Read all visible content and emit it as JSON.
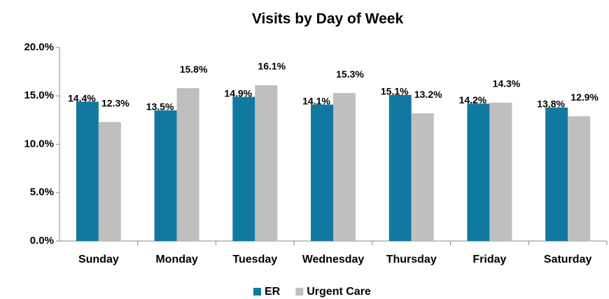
{
  "chart_data": {
    "type": "bar",
    "title": "Visits by Day of Week",
    "categories": [
      "Sunday",
      "Monday",
      "Tuesday",
      "Wednesday",
      "Thursday",
      "Friday",
      "Saturday"
    ],
    "series": [
      {
        "name": "ER",
        "color": "#11799f",
        "values": [
          14.4,
          13.5,
          14.9,
          14.1,
          15.1,
          14.2,
          13.8
        ],
        "value_labels": [
          "14.4%",
          "13.5%",
          "14.9%",
          "14.1%",
          "15.1%",
          "14.2%",
          "13.8%"
        ]
      },
      {
        "name": "Urgent Care",
        "color": "#bfbfbf",
        "values": [
          12.3,
          15.8,
          16.1,
          15.3,
          13.2,
          14.3,
          12.9
        ],
        "value_labels": [
          "12.3%",
          "15.8%",
          "16.1%",
          "15.3%",
          "13.2%",
          "14.3%",
          "12.9%"
        ]
      }
    ],
    "ylim": [
      0,
      20
    ],
    "yticks": [
      {
        "value": 0,
        "label": "0.0%"
      },
      {
        "value": 5,
        "label": "5.0%"
      },
      {
        "value": 10,
        "label": "10.0%"
      },
      {
        "value": 15,
        "label": "15.0%"
      },
      {
        "value": 20,
        "label": "20.0%"
      }
    ],
    "grid": false,
    "legend": "bottom"
  }
}
